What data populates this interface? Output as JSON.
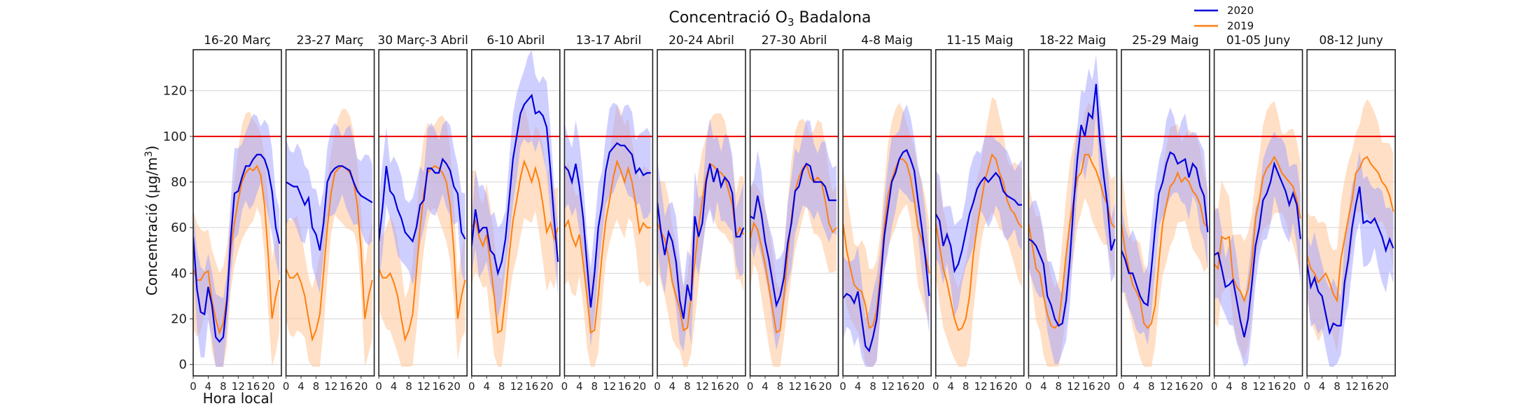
{
  "chart_data": {
    "type": "line",
    "title": "Concentració O",
    "title_sub": "3",
    "title_suffix": " Badalona",
    "ylabel": "Concentració (μg/m",
    "ylabel_sup": "3",
    "ylabel_suffix": ")",
    "xlabel": "Hora local",
    "ylim": [
      -5,
      138
    ],
    "yticks": [
      0,
      20,
      40,
      60,
      80,
      100,
      120
    ],
    "xlim": [
      0,
      23.5
    ],
    "xticks": [
      0,
      4,
      8,
      12,
      16,
      20
    ],
    "x": [
      0,
      1,
      2,
      3,
      4,
      5,
      6,
      7,
      8,
      9,
      10,
      11,
      12,
      13,
      14,
      15,
      16,
      17,
      18,
      19,
      20,
      21,
      22,
      23
    ],
    "threshold": 100,
    "grid": true,
    "legend_position": "top-right",
    "colors": {
      "s2020": "#0000dd",
      "s2019": "#ff7f0e",
      "band2020": "#a0a0ff",
      "band2019": "#ffc99e",
      "threshold": "#ee0000"
    },
    "legend": [
      "2020",
      "2019"
    ],
    "panels": [
      {
        "title": "16-20 Març",
        "s2020": [
          56,
          33,
          23,
          22,
          34,
          26,
          12,
          10,
          12,
          28,
          55,
          75,
          76,
          82,
          87,
          87,
          90,
          92,
          92,
          90,
          85,
          76,
          60,
          53
        ],
        "s2019": [
          42,
          37,
          37,
          40,
          41,
          28,
          20,
          14,
          18,
          30,
          50,
          62,
          72,
          80,
          84,
          86,
          85,
          87,
          83,
          70,
          48,
          20,
          30,
          37
        ]
      },
      {
        "title": "23-27 Març",
        "s2020": [
          80,
          79,
          78,
          78,
          74,
          70,
          73,
          60,
          57,
          50,
          62,
          80,
          84,
          86,
          87,
          87,
          86,
          85,
          80,
          76,
          74,
          73,
          72,
          71
        ],
        "s2019": [
          42,
          38,
          38,
          40,
          36,
          30,
          20,
          11,
          15,
          22,
          40,
          60,
          75,
          84,
          86,
          87,
          86,
          84,
          80,
          70,
          50,
          20,
          30,
          37
        ]
      },
      {
        "title": "30 Març-3 Abril",
        "s2020": [
          54,
          69,
          87,
          76,
          74,
          68,
          64,
          58,
          56,
          54,
          60,
          70,
          72,
          86,
          86,
          84,
          84,
          90,
          88,
          85,
          78,
          75,
          58,
          55
        ],
        "s2019": [
          42,
          38,
          38,
          40,
          36,
          30,
          20,
          11,
          15,
          22,
          40,
          60,
          75,
          84,
          86,
          87,
          86,
          84,
          80,
          70,
          50,
          20,
          30,
          37
        ]
      },
      {
        "title": "6-10 Abril",
        "s2020": [
          52,
          68,
          58,
          60,
          60,
          50,
          48,
          40,
          45,
          55,
          72,
          90,
          100,
          110,
          114,
          116,
          118,
          110,
          111,
          109,
          104,
          85,
          63,
          45
        ],
        "s2019": [
          60,
          63,
          56,
          52,
          57,
          44,
          30,
          14,
          15,
          30,
          48,
          63,
          72,
          82,
          89,
          85,
          80,
          86,
          80,
          70,
          58,
          62,
          55,
          60
        ]
      },
      {
        "title": "13-17 Abril",
        "s2020": [
          87,
          85,
          80,
          88,
          78,
          64,
          44,
          25,
          40,
          60,
          70,
          85,
          93,
          95,
          97,
          96,
          96,
          94,
          92,
          84,
          86,
          83,
          84,
          84
        ],
        "s2019": [
          60,
          63,
          56,
          52,
          57,
          44,
          30,
          14,
          15,
          30,
          48,
          63,
          72,
          82,
          89,
          85,
          80,
          86,
          80,
          70,
          58,
          62,
          60,
          60
        ]
      },
      {
        "title": "20-24 Abril",
        "s2020": [
          71,
          58,
          48,
          58,
          54,
          45,
          28,
          20,
          35,
          28,
          65,
          56,
          62,
          80,
          88,
          80,
          86,
          78,
          82,
          80,
          75,
          56,
          56,
          60
        ],
        "s2019": [
          62,
          58,
          55,
          47,
          36,
          30,
          24,
          15,
          16,
          30,
          45,
          60,
          72,
          82,
          88,
          87,
          85,
          84,
          82,
          76,
          70,
          56,
          60,
          57
        ]
      },
      {
        "title": "27-30 Abril",
        "s2020": [
          65,
          64,
          74,
          66,
          54,
          46,
          36,
          26,
          30,
          38,
          53,
          62,
          76,
          78,
          85,
          88,
          87,
          80,
          80,
          80,
          78,
          72,
          72,
          72
        ],
        "s2019": [
          55,
          62,
          59,
          52,
          44,
          34,
          24,
          14,
          15,
          30,
          48,
          64,
          76,
          82,
          86,
          88,
          82,
          80,
          82,
          80,
          72,
          62,
          58,
          60
        ]
      },
      {
        "title": "4-8 Maig",
        "s2020": [
          29,
          31,
          30,
          27,
          32,
          20,
          8,
          6,
          12,
          20,
          36,
          56,
          68,
          80,
          84,
          90,
          93,
          94,
          90,
          85,
          72,
          60,
          46,
          30
        ],
        "s2019": [
          62,
          50,
          42,
          35,
          33,
          32,
          26,
          16,
          17,
          24,
          40,
          60,
          74,
          81,
          86,
          90,
          90,
          88,
          82,
          72,
          60,
          55,
          48,
          40
        ]
      },
      {
        "title": "11-15 Maig",
        "s2020": [
          66,
          63,
          52,
          57,
          52,
          41,
          44,
          50,
          58,
          66,
          71,
          77,
          80,
          82,
          80,
          82,
          84,
          82,
          76,
          74,
          73,
          72,
          70,
          70
        ],
        "s2019": [
          62,
          52,
          42,
          36,
          28,
          20,
          15,
          16,
          20,
          30,
          48,
          60,
          70,
          80,
          86,
          92,
          90,
          84,
          80,
          72,
          68,
          66,
          62,
          60
        ]
      },
      {
        "title": "18-22 Maig",
        "s2020": [
          55,
          54,
          52,
          48,
          44,
          30,
          26,
          20,
          17,
          18,
          28,
          46,
          70,
          90,
          105,
          100,
          110,
          108,
          123,
          98,
          83,
          70,
          50,
          55
        ],
        "s2019": [
          62,
          52,
          42,
          40,
          30,
          22,
          17,
          16,
          18,
          32,
          48,
          62,
          72,
          82,
          84,
          92,
          92,
          88,
          85,
          80,
          74,
          70,
          62,
          60
        ]
      },
      {
        "title": "25-29 Maig",
        "s2020": [
          50,
          46,
          40,
          40,
          35,
          30,
          27,
          26,
          42,
          60,
          75,
          80,
          88,
          93,
          92,
          88,
          89,
          90,
          82,
          88,
          86,
          78,
          74,
          58
        ],
        "s2019": [
          62,
          50,
          42,
          35,
          32,
          28,
          18,
          16,
          18,
          26,
          45,
          62,
          70,
          78,
          80,
          84,
          80,
          82,
          80,
          76,
          74,
          70,
          62,
          60
        ]
      },
      {
        "title": "01-05 Juny",
        "s2020": [
          48,
          49,
          42,
          34,
          35,
          37,
          28,
          19,
          12,
          20,
          35,
          52,
          60,
          72,
          75,
          80,
          88,
          84,
          80,
          76,
          70,
          75,
          70,
          55
        ],
        "s2019": [
          44,
          42,
          56,
          55,
          56,
          38,
          34,
          32,
          28,
          33,
          44,
          64,
          72,
          82,
          86,
          88,
          91,
          88,
          84,
          82,
          80,
          78,
          72,
          64
        ]
      },
      {
        "title": "08-12 Juny",
        "s2020": [
          44,
          34,
          38,
          32,
          30,
          22,
          14,
          18,
          17,
          17,
          36,
          46,
          60,
          70,
          78,
          62,
          63,
          62,
          64,
          60,
          56,
          50,
          55,
          51
        ],
        "s2019": [
          48,
          42,
          40,
          36,
          38,
          40,
          36,
          31,
          28,
          46,
          55,
          64,
          72,
          84,
          86,
          90,
          91,
          88,
          86,
          84,
          80,
          78,
          74,
          67
        ]
      }
    ]
  }
}
